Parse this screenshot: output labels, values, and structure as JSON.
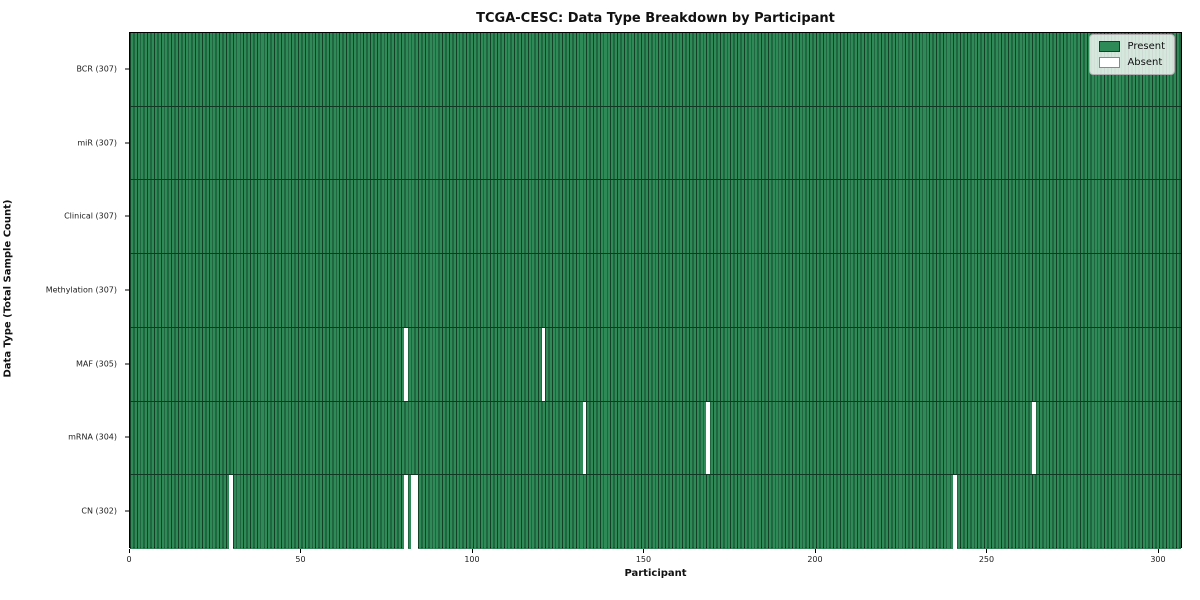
{
  "chart_data": {
    "type": "heatmap",
    "title": "TCGA-CESC: Data Type Breakdown by Participant",
    "xlabel": "Participant",
    "ylabel": "Data Type (Total Sample Count)",
    "n_participants": 307,
    "xlim": [
      0,
      307
    ],
    "x_ticks": [
      0,
      50,
      100,
      150,
      200,
      250,
      300
    ],
    "grid": false,
    "legend": {
      "position": "upper-right",
      "entries": [
        {
          "label": "Present",
          "color": "#2e8b57"
        },
        {
          "label": "Absent",
          "color": "#ffffff"
        }
      ]
    },
    "colors": {
      "present": "#2e8b57",
      "absent": "#ffffff",
      "cell_border": "#0a2818",
      "axis": "#000000"
    },
    "rows": [
      {
        "name": "BCR",
        "label": "BCR (307)",
        "total": 307,
        "absent_participants": []
      },
      {
        "name": "miR",
        "label": "miR (307)",
        "total": 307,
        "absent_participants": []
      },
      {
        "name": "Clinical",
        "label": "Clinical (307)",
        "total": 307,
        "absent_participants": []
      },
      {
        "name": "Methylation",
        "label": "Methylation (307)",
        "total": 307,
        "absent_participants": []
      },
      {
        "name": "MAF",
        "label": "MAF (305)",
        "total": 305,
        "absent_participants": [
          80,
          120
        ]
      },
      {
        "name": "mRNA",
        "label": "mRNA (304)",
        "total": 304,
        "absent_participants": [
          132,
          168,
          263
        ]
      },
      {
        "name": "CN",
        "label": "CN (302)",
        "total": 302,
        "absent_participants": [
          29,
          80,
          82,
          83,
          240
        ]
      }
    ]
  }
}
